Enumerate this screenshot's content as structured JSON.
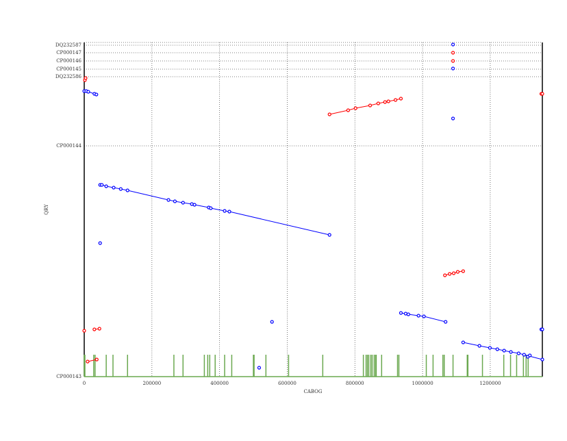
{
  "chart_data": {
    "type": "scatter",
    "x_label": "CABOG",
    "y_label": "QRY",
    "xlim": [
      0,
      1354000
    ],
    "xticks": [
      0,
      200000,
      400000,
      600000,
      800000,
      1000000,
      1200000
    ],
    "ylim": [
      0,
      4880000
    ],
    "yticks": [
      {
        "value": 0,
        "label": "CP000143"
      },
      {
        "value": 3370000,
        "label": "CP000144"
      },
      {
        "value": 4380000,
        "label": "DQ232586"
      },
      {
        "value": 4490000,
        "label": "CP000145"
      },
      {
        "value": 4610000,
        "label": "CP000146"
      },
      {
        "value": 4730000,
        "label": "CP000147"
      },
      {
        "value": 4840000,
        "label": "DQ232587"
      }
    ],
    "grid": true,
    "series": [
      {
        "color": "#ff0000",
        "x": [
          725000,
          780000,
          802000,
          845000,
          869000,
          889000,
          899000,
          920000,
          936000,
          null,
          1066000,
          1080000,
          1092000,
          1104000,
          1120000,
          null,
          2000,
          4000,
          null,
          1351000,
          1354000,
          null,
          30000,
          45000,
          null,
          0,
          null,
          10000,
          37000,
          null,
          1090000,
          null,
          1090000
        ],
        "y": [
          3830000,
          3890000,
          3920000,
          3960000,
          3990000,
          4010000,
          4020000,
          4040000,
          4060000,
          null,
          1480000,
          1500000,
          1510000,
          1530000,
          1540000,
          null,
          4330000,
          4360000,
          null,
          4130000,
          4130000,
          null,
          690000,
          700000,
          null,
          670000,
          null,
          220000,
          250000,
          null,
          4730000,
          null,
          4610000
        ]
      },
      {
        "color": "#0000ff",
        "x": [
          0,
          6000,
          12000,
          30000,
          36000,
          null,
          47000,
          52000,
          65000,
          87000,
          108000,
          128000,
          249000,
          268000,
          292000,
          318000,
          326000,
          368000,
          374000,
          415000,
          429000,
          725000,
          null,
          47000,
          null,
          936000,
          950000,
          958000,
          988000,
          1004000,
          1068000,
          null,
          1120000,
          1168000,
          1199000,
          1221000,
          1241000,
          1261000,
          1284000,
          1300000,
          1354000,
          null,
          555000,
          null,
          517000,
          null,
          1090000,
          null,
          1090000,
          null,
          1090000,
          null,
          1351000,
          1354000,
          null,
          1311000,
          1317000
        ],
        "y": [
          4170000,
          4170000,
          4160000,
          4130000,
          4120000,
          null,
          2800000,
          2800000,
          2780000,
          2760000,
          2740000,
          2720000,
          2580000,
          2560000,
          2540000,
          2520000,
          2510000,
          2470000,
          2460000,
          2420000,
          2410000,
          2070000,
          null,
          1950000,
          null,
          930000,
          920000,
          910000,
          890000,
          880000,
          800000,
          null,
          500000,
          450000,
          420000,
          400000,
          380000,
          360000,
          340000,
          320000,
          250000,
          null,
          800000,
          null,
          130000,
          null,
          3770000,
          null,
          4500000,
          null,
          4850000,
          null,
          690000,
          690000,
          null,
          290000,
          310000
        ]
      }
    ],
    "markers": {
      "color": "#6aa84f",
      "x": [
        0,
        2000,
        28000,
        32000,
        65000,
        85000,
        128000,
        265000,
        292000,
        355000,
        365000,
        371000,
        387000,
        415000,
        436000,
        500000,
        502000,
        537000,
        604000,
        705000,
        825000,
        833000,
        837000,
        841000,
        847000,
        851000,
        857000,
        861000,
        863000,
        879000,
        926000,
        930000,
        1011000,
        1031000,
        1060000,
        1064000,
        1090000,
        1132000,
        1134000,
        1177000,
        1240000,
        1260000,
        1278000,
        1298000,
        1306000,
        1312000
      ]
    }
  }
}
